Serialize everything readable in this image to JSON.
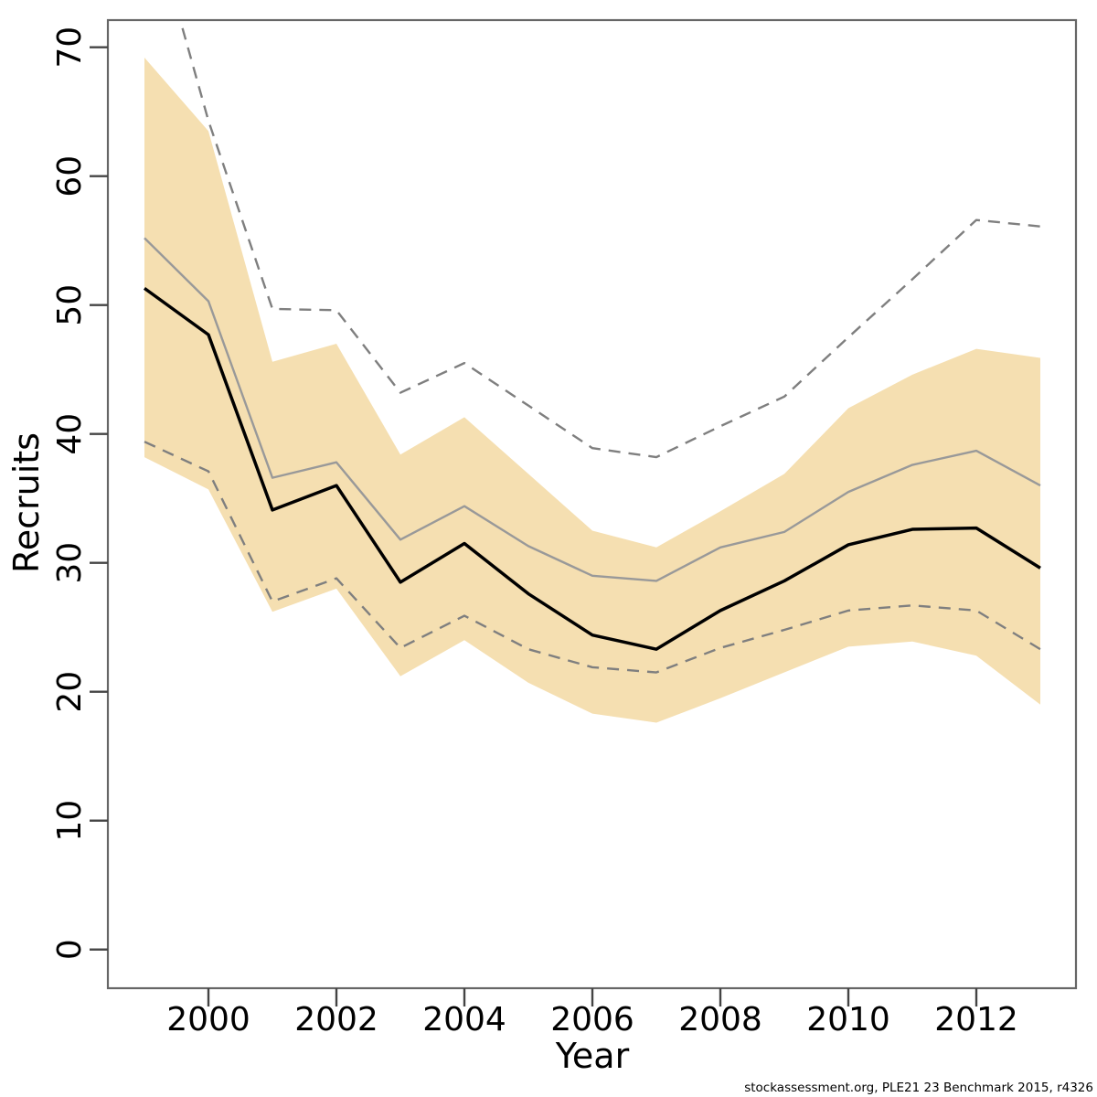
{
  "caption": "stockassessment.org, PLE21 23 Benchmark 2015, r4326",
  "chart_data": {
    "type": "line",
    "title": "",
    "xlabel": "Year",
    "ylabel": "Recruits",
    "caption": "stockassessment.org, PLE21 23 Benchmark 2015, r4326",
    "grid": false,
    "legend": "none",
    "xlim": [
      1998.4,
      2013.6
    ],
    "ylim": [
      -3,
      72.3
    ],
    "x_ticks": [
      2000,
      2002,
      2004,
      2006,
      2008,
      2010,
      2012
    ],
    "y_ticks": [
      0,
      10,
      20,
      30,
      40,
      50,
      60,
      70
    ],
    "years": [
      1999,
      2000,
      2001,
      2002,
      2003,
      2004,
      2005,
      2006,
      2007,
      2008,
      2009,
      2010,
      2011,
      2012,
      2013
    ],
    "series": [
      {
        "name": "current-run-median",
        "style": "solid",
        "color": "#000000",
        "values": [
          51.3,
          47.7,
          34.1,
          36.0,
          28.5,
          31.5,
          27.6,
          24.4,
          23.3,
          26.3,
          28.6,
          31.4,
          32.6,
          32.7,
          29.6
        ]
      },
      {
        "name": "comparison-run-median",
        "style": "solid",
        "color": "#999999",
        "values": [
          55.2,
          50.3,
          36.6,
          37.8,
          31.8,
          34.4,
          31.3,
          29.0,
          28.6,
          31.2,
          32.4,
          35.5,
          37.6,
          38.7,
          36.0
        ]
      },
      {
        "name": "comparison-run-ci-upper",
        "style": "dashed",
        "color": "#7f7f7f",
        "values": [
          82.0,
          64.3,
          49.7,
          49.6,
          43.2,
          45.5,
          42.2,
          38.9,
          38.2,
          40.6,
          42.9,
          47.5,
          52.0,
          56.6,
          56.1
        ]
      },
      {
        "name": "comparison-run-ci-lower",
        "style": "dashed",
        "color": "#7f7f7f",
        "values": [
          39.4,
          37.1,
          27.0,
          28.8,
          23.4,
          25.9,
          23.3,
          21.9,
          21.5,
          23.4,
          24.8,
          26.3,
          26.7,
          26.3,
          23.3
        ]
      }
    ],
    "band": {
      "name": "current-run-confidence-band",
      "fill": "#f5dfb1",
      "upper": [
        69.2,
        63.5,
        45.6,
        47.0,
        38.4,
        41.3,
        36.9,
        32.5,
        31.2,
        34.0,
        36.9,
        42.0,
        44.6,
        46.6,
        45.9
      ],
      "lower": [
        38.2,
        35.7,
        26.2,
        28.0,
        21.2,
        24.0,
        20.7,
        18.3,
        17.6,
        19.5,
        21.5,
        23.5,
        23.9,
        22.8,
        19.0
      ]
    },
    "colors": {
      "band_fill": "#f5dfb1",
      "current_line": "#000000",
      "comparison_line": "#999999",
      "ci_dashed_line": "#7f7f7f",
      "box_border": "#666666",
      "tick_mark": "#444444"
    }
  }
}
